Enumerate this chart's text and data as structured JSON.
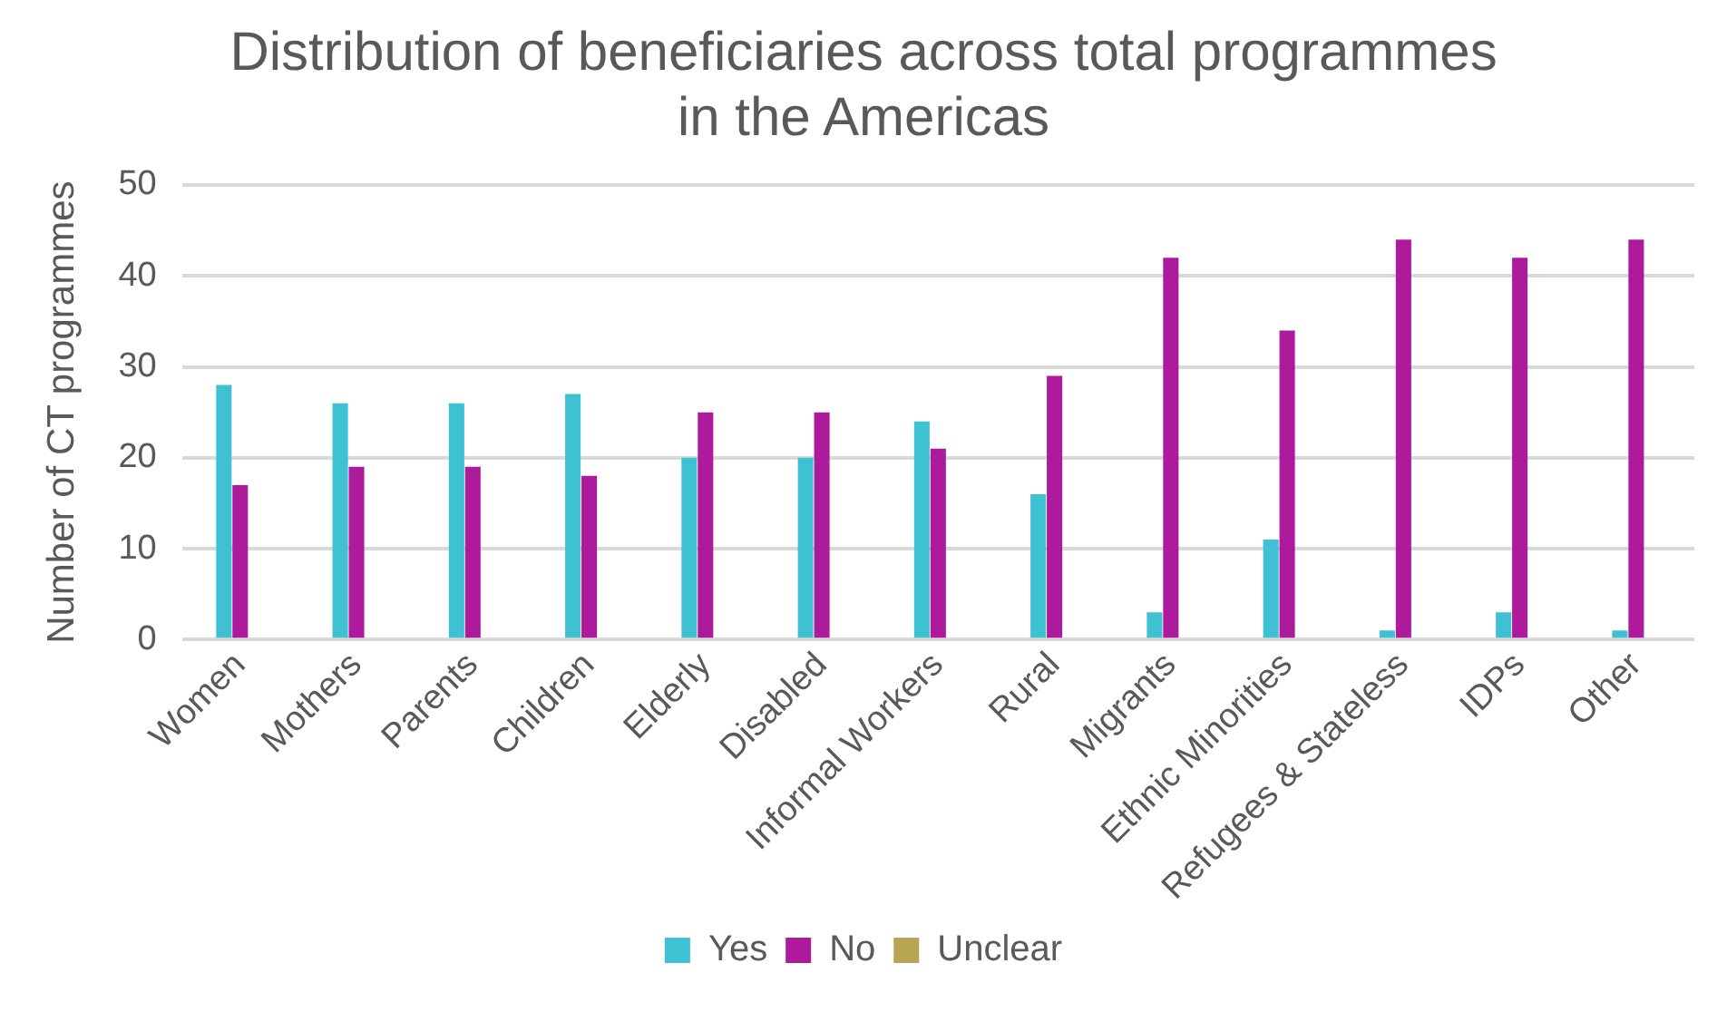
{
  "chart_data": {
    "type": "bar",
    "title": "Distribution of beneficiaries across total programmes in the Americas",
    "ylabel": "Number of CT programmes",
    "categories": [
      "Women",
      "Mothers",
      "Parents",
      "Children",
      "Elderly",
      "Disabled",
      "Informal Workers",
      "Rural",
      "Migrants",
      "Ethnic Minorities",
      "Refugees & Stateless",
      "IDPs",
      "Other"
    ],
    "series": [
      {
        "name": "Yes",
        "color": "#3ec1d3",
        "values": [
          28,
          26,
          26,
          27,
          20,
          20,
          24,
          16,
          3,
          11,
          1,
          3,
          1
        ]
      },
      {
        "name": "No",
        "color": "#ad1a9c",
        "values": [
          17,
          19,
          19,
          18,
          25,
          25,
          21,
          29,
          42,
          34,
          44,
          42,
          44
        ]
      },
      {
        "name": "Unclear",
        "color": "#b8a553",
        "values": [
          0,
          0,
          0,
          0,
          0,
          0,
          0,
          0,
          0,
          0,
          0,
          0,
          0
        ]
      }
    ],
    "ylim": [
      0,
      50
    ],
    "yticks": [
      0,
      10,
      20,
      30,
      40,
      50
    ],
    "grid": "y",
    "legend": "bottom"
  }
}
